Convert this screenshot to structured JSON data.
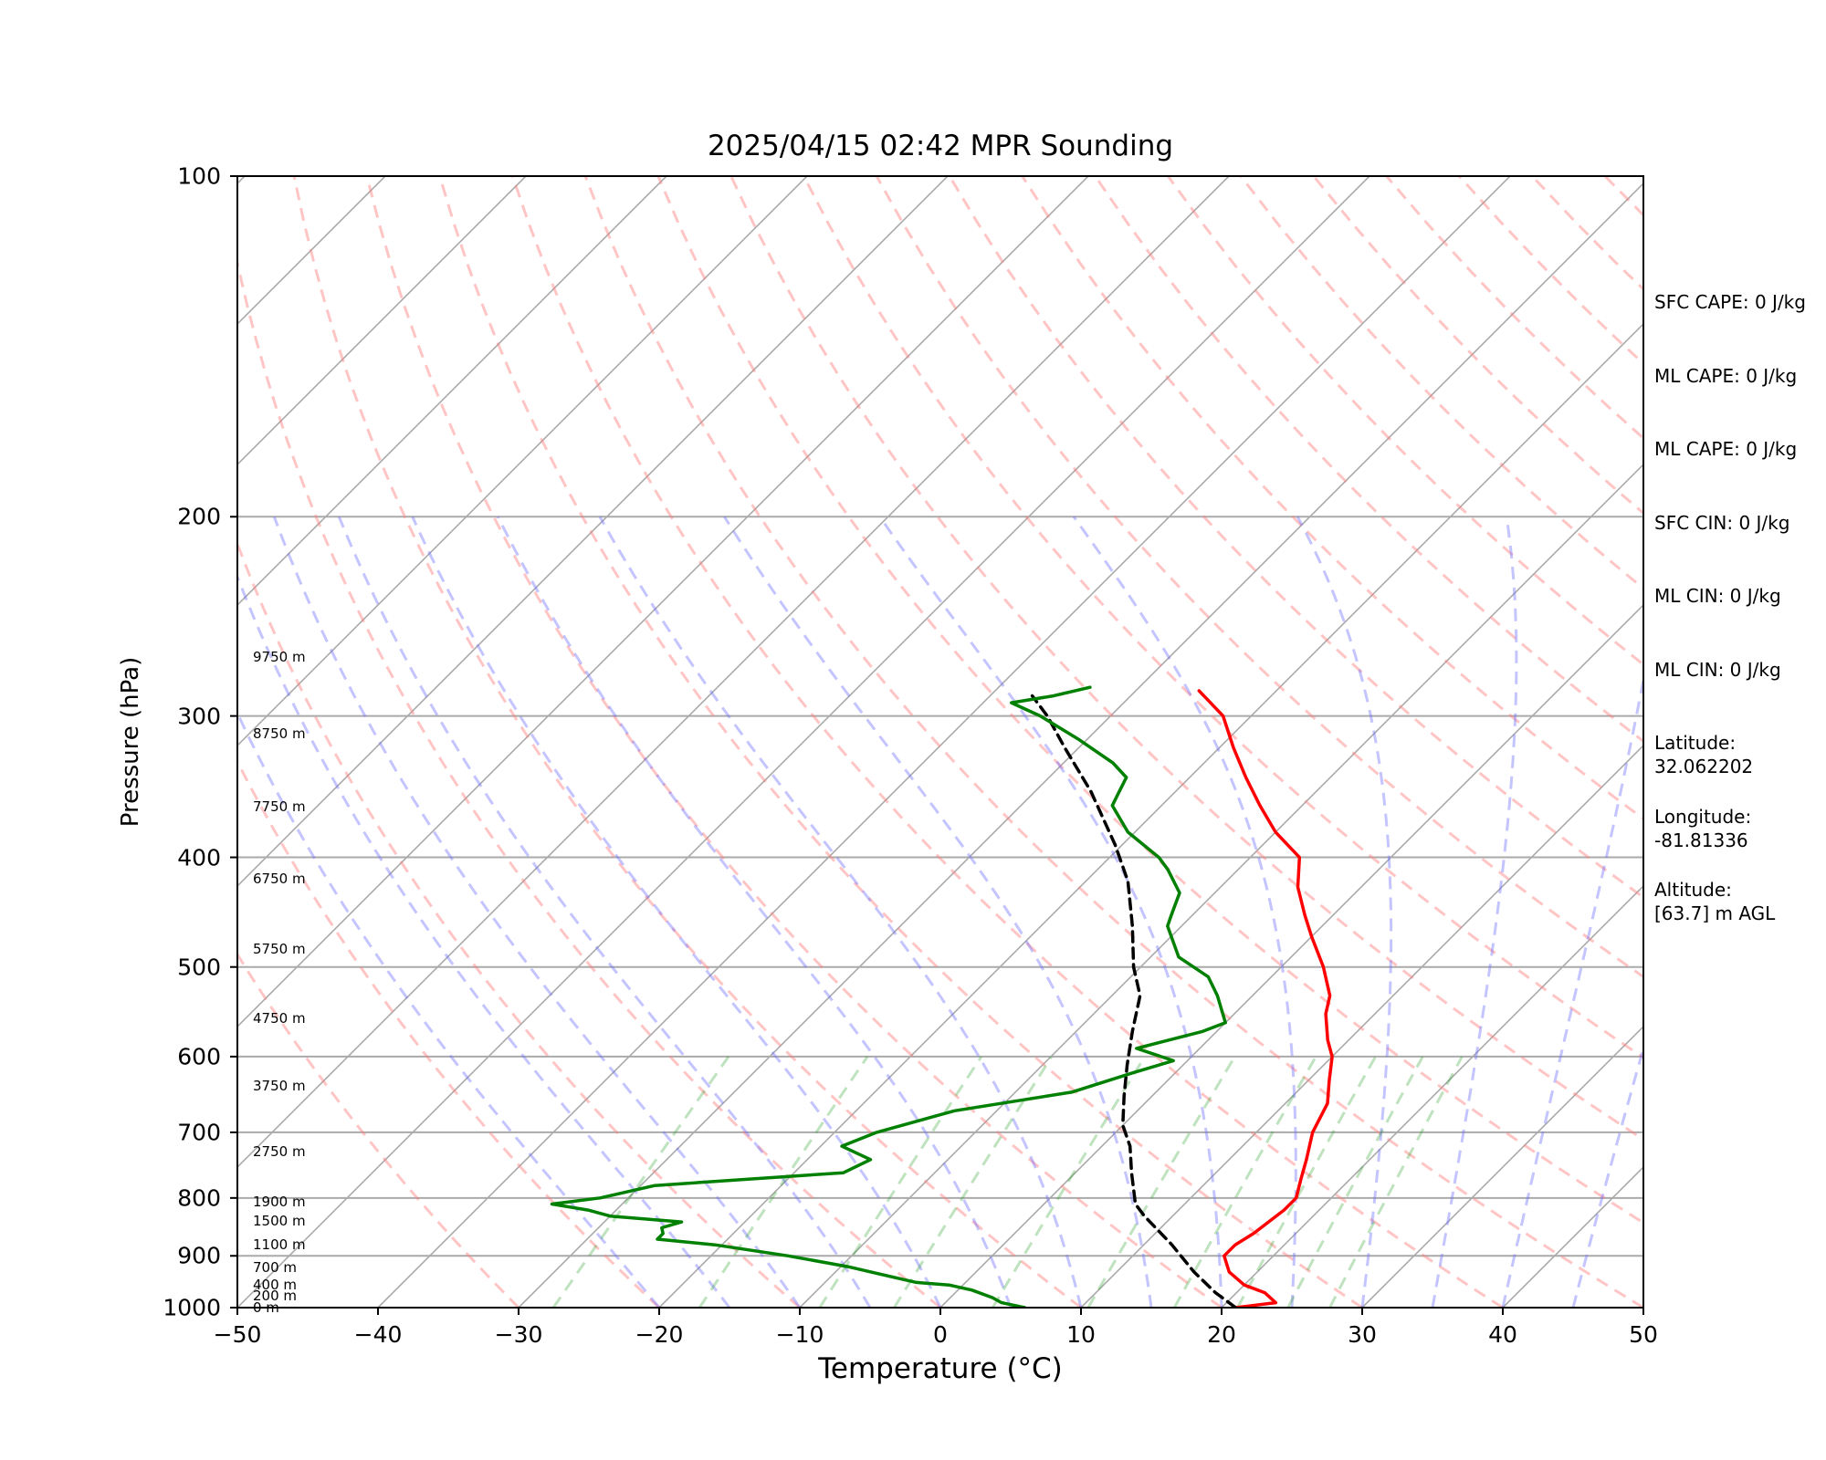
{
  "chart_data": {
    "type": "line",
    "title": "2025/04/15 02:42 MPR Sounding",
    "xlabel": "Temperature (°C)",
    "ylabel": "Pressure (hPa)",
    "xlim": [
      -50,
      50
    ],
    "ylim": [
      1000,
      100
    ],
    "y_scale": "log",
    "skew": "skew-T log-P",
    "x_ticks": [
      "−50",
      "−40",
      "−30",
      "−20",
      "−10",
      "0",
      "10",
      "20",
      "30",
      "40",
      "50"
    ],
    "y_ticks": [
      "1000",
      "900",
      "800",
      "700",
      "600",
      "500",
      "400",
      "300",
      "200",
      "100"
    ],
    "height_labels": [
      {
        "p": 1000,
        "text": "0 m"
      },
      {
        "p": 977,
        "text": "200 m"
      },
      {
        "p": 955,
        "text": "400 m"
      },
      {
        "p": 922,
        "text": "700 m"
      },
      {
        "p": 879,
        "text": "1100 m"
      },
      {
        "p": 838,
        "text": "1500 m"
      },
      {
        "p": 806,
        "text": "1900 m"
      },
      {
        "p": 728,
        "text": "2750 m"
      },
      {
        "p": 637,
        "text": "3750 m"
      },
      {
        "p": 555,
        "text": "4750 m"
      },
      {
        "p": 482,
        "text": "5750 m"
      },
      {
        "p": 418,
        "text": "6750 m"
      },
      {
        "p": 361,
        "text": "7750 m"
      },
      {
        "p": 311,
        "text": "8750 m"
      },
      {
        "p": 266,
        "text": "9750 m"
      }
    ],
    "series": [
      {
        "role": "temperature",
        "color": "#ff0000",
        "points": [
          [
            21.0,
            1000
          ],
          [
            22.0,
            996
          ],
          [
            23.5,
            990
          ],
          [
            22.0,
            970
          ],
          [
            20.0,
            955
          ],
          [
            18.0,
            930
          ],
          [
            16.5,
            900
          ],
          [
            16.5,
            880
          ],
          [
            17.0,
            860
          ],
          [
            17.5,
            820
          ],
          [
            17.5,
            800
          ],
          [
            16.5,
            770
          ],
          [
            15.5,
            740
          ],
          [
            14.0,
            700
          ],
          [
            13.0,
            660
          ],
          [
            11.5,
            630
          ],
          [
            10.0,
            600
          ],
          [
            8.5,
            580
          ],
          [
            6.5,
            550
          ],
          [
            5.5,
            530
          ],
          [
            3.0,
            500
          ],
          [
            0.0,
            470
          ],
          [
            -2.0,
            450
          ],
          [
            -4.5,
            425
          ],
          [
            -6.5,
            400
          ],
          [
            -10.0,
            380
          ],
          [
            -13.0,
            360
          ],
          [
            -16.0,
            340
          ],
          [
            -19.0,
            320
          ],
          [
            -22.0,
            300
          ],
          [
            -25.5,
            285
          ]
        ]
      },
      {
        "role": "parcel",
        "color": "#000000",
        "style": "dashed",
        "points": [
          [
            21.0,
            1000
          ],
          [
            18.5,
            970
          ],
          [
            15.5,
            930
          ],
          [
            12.0,
            880
          ],
          [
            8.0,
            830
          ],
          [
            6.5,
            810
          ],
          [
            4.0,
            760
          ],
          [
            2.0,
            720
          ],
          [
            0.0,
            690
          ],
          [
            -2.0,
            650
          ],
          [
            -4.0,
            610
          ],
          [
            -6.0,
            570
          ],
          [
            -8.0,
            530
          ],
          [
            -10.5,
            500
          ],
          [
            -13.5,
            460
          ],
          [
            -17.0,
            420
          ],
          [
            -20.5,
            390
          ],
          [
            -26.0,
            350
          ],
          [
            -31.0,
            320
          ],
          [
            -34.5,
            300
          ],
          [
            -37.0,
            288
          ]
        ]
      },
      {
        "role": "dewpoint",
        "color": "#008000",
        "points": [
          [
            6.0,
            1000
          ],
          [
            4.0,
            990
          ],
          [
            3.0,
            980
          ],
          [
            1.0,
            965
          ],
          [
            -1.0,
            955
          ],
          [
            -3.5,
            950
          ],
          [
            -5.5,
            940
          ],
          [
            -9.5,
            920
          ],
          [
            -14.5,
            900
          ],
          [
            -20.5,
            880
          ],
          [
            -25.0,
            870
          ],
          [
            -25.0,
            860
          ],
          [
            -25.5,
            850
          ],
          [
            -24.5,
            840
          ],
          [
            -30.0,
            830
          ],
          [
            -32.0,
            820
          ],
          [
            -35.0,
            810
          ],
          [
            -32.0,
            800
          ],
          [
            -29.0,
            780
          ],
          [
            -16.5,
            760
          ],
          [
            -15.5,
            740
          ],
          [
            -18.5,
            720
          ],
          [
            -17.0,
            700
          ],
          [
            -13.0,
            670
          ],
          [
            -6.0,
            645
          ],
          [
            -3.0,
            620
          ],
          [
            -1.0,
            605
          ],
          [
            -4.5,
            590
          ],
          [
            -1.0,
            570
          ],
          [
            0.0,
            560
          ],
          [
            -2.5,
            530
          ],
          [
            -4.5,
            510
          ],
          [
            -8.0,
            490
          ],
          [
            -11.0,
            460
          ],
          [
            -11.5,
            450
          ],
          [
            -12.5,
            430
          ],
          [
            -15.0,
            410
          ],
          [
            -16.5,
            400
          ],
          [
            -20.5,
            380
          ],
          [
            -23.5,
            360
          ],
          [
            -24.0,
            350
          ],
          [
            -24.5,
            340
          ],
          [
            -26.5,
            330
          ],
          [
            -30.5,
            315
          ],
          [
            -35.0,
            300
          ],
          [
            -38.0,
            292
          ],
          [
            -35.5,
            288
          ],
          [
            -33.5,
            283
          ]
        ]
      }
    ],
    "info": [
      "SFC CAPE: 0 J/kg",
      "ML CAPE: 0 J/kg",
      "ML CAPE: 0 J/kg",
      "SFC CIN: 0 J/kg",
      "ML CIN: 0 J/kg",
      "ML CIN: 0 J/kg",
      "Latitude:\n32.062202",
      "Longitude:\n-81.81336",
      "Altitude:\n[63.7] m AGL"
    ],
    "grid": true
  }
}
